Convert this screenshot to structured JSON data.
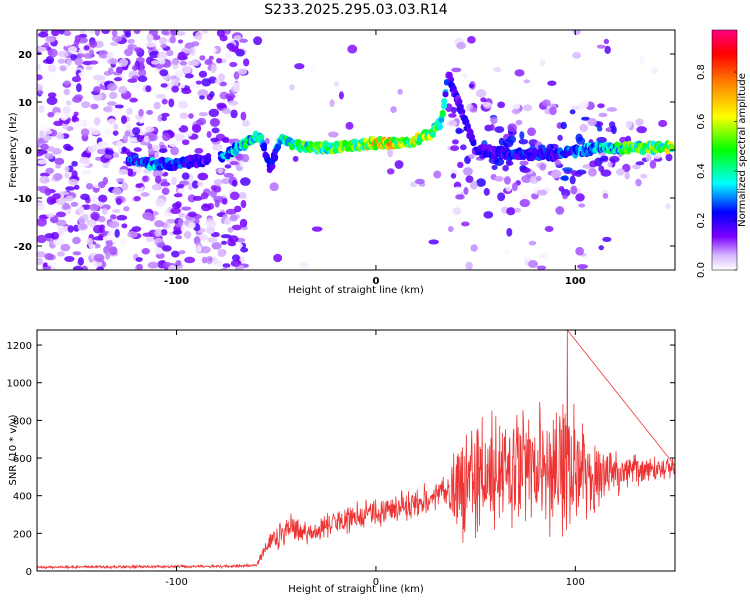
{
  "title": "S233.2025.295.03.03.R14",
  "chart_data": [
    {
      "type": "heatmap",
      "name": "spectrogram",
      "xlabel": "Height of straight line (km)",
      "ylabel": "Frequency (Hz)",
      "xlim": [
        -170,
        150
      ],
      "ylim": [
        -25,
        25
      ],
      "xticks": [
        -100,
        0,
        100
      ],
      "yticks": [
        -20,
        -10,
        0,
        10,
        20
      ],
      "colorbar": {
        "label": "Normalized spectral amplitude",
        "ticks": [
          0.0,
          0.2,
          0.4,
          0.6,
          0.8
        ],
        "range": [
          0,
          0.97
        ]
      },
      "ridge": [
        {
          "x": -122,
          "f": -2,
          "a": 0.3
        },
        {
          "x": -112,
          "f": -3,
          "a": 0.35
        },
        {
          "x": -100,
          "f": -3,
          "a": 0.28
        },
        {
          "x": -85,
          "f": -2,
          "a": 0.2
        },
        {
          "x": -75,
          "f": -1,
          "a": 0.35
        },
        {
          "x": -65,
          "f": 1.5,
          "a": 0.45
        },
        {
          "x": -58,
          "f": 3,
          "a": 0.4
        },
        {
          "x": -53,
          "f": -4,
          "a": 0.2
        },
        {
          "x": -48,
          "f": 2,
          "a": 0.4
        },
        {
          "x": -40,
          "f": 1,
          "a": 0.5
        },
        {
          "x": -30,
          "f": 0.5,
          "a": 0.55
        },
        {
          "x": -20,
          "f": 0.5,
          "a": 0.6
        },
        {
          "x": -10,
          "f": 1,
          "a": 0.6
        },
        {
          "x": 0,
          "f": 1.5,
          "a": 0.75
        },
        {
          "x": 10,
          "f": 1.5,
          "a": 0.7
        },
        {
          "x": 20,
          "f": 2,
          "a": 0.65
        },
        {
          "x": 28,
          "f": 3.5,
          "a": 0.55
        },
        {
          "x": 33,
          "f": 6,
          "a": 0.5
        },
        {
          "x": 36,
          "f": 16,
          "a": 0.2
        },
        {
          "x": 50,
          "f": 0,
          "a": 0.2
        },
        {
          "x": 70,
          "f": -1,
          "a": 0.25
        },
        {
          "x": 90,
          "f": -1,
          "a": 0.25
        },
        {
          "x": 110,
          "f": 0.5,
          "a": 0.35
        },
        {
          "x": 130,
          "f": 0.5,
          "a": 0.55
        },
        {
          "x": 148,
          "f": 0.5,
          "a": 0.6
        }
      ]
    },
    {
      "type": "line",
      "name": "snr",
      "xlabel": "Height of straight line (km)",
      "ylabel": "SNR (10 * v/v)",
      "xlim": [
        -170,
        150
      ],
      "ylim": [
        0,
        1280
      ],
      "xticks": [
        -100,
        0,
        100
      ],
      "yticks": [
        0,
        200,
        400,
        600,
        800,
        1000,
        1200
      ],
      "color": "#ee3333",
      "envelope": [
        {
          "x": -170,
          "mean": 20,
          "spread": 8
        },
        {
          "x": -70,
          "mean": 25,
          "spread": 10
        },
        {
          "x": -60,
          "mean": 30,
          "spread": 10
        },
        {
          "x": -55,
          "mean": 120,
          "spread": 60
        },
        {
          "x": -45,
          "mean": 220,
          "spread": 110
        },
        {
          "x": -35,
          "mean": 200,
          "spread": 70
        },
        {
          "x": -20,
          "mean": 260,
          "spread": 80
        },
        {
          "x": 0,
          "mean": 310,
          "spread": 90
        },
        {
          "x": 20,
          "mean": 360,
          "spread": 90
        },
        {
          "x": 35,
          "mean": 420,
          "spread": 100
        },
        {
          "x": 45,
          "mean": 470,
          "spread": 380
        },
        {
          "x": 60,
          "mean": 520,
          "spread": 420
        },
        {
          "x": 80,
          "mean": 520,
          "spread": 400
        },
        {
          "x": 96,
          "mean": 560,
          "spread": 450
        },
        {
          "x": 110,
          "mean": 520,
          "spread": 220
        },
        {
          "x": 130,
          "mean": 530,
          "spread": 90
        },
        {
          "x": 150,
          "mean": 560,
          "spread": 70
        }
      ],
      "peak": {
        "x": 96,
        "y": 1280
      }
    }
  ]
}
